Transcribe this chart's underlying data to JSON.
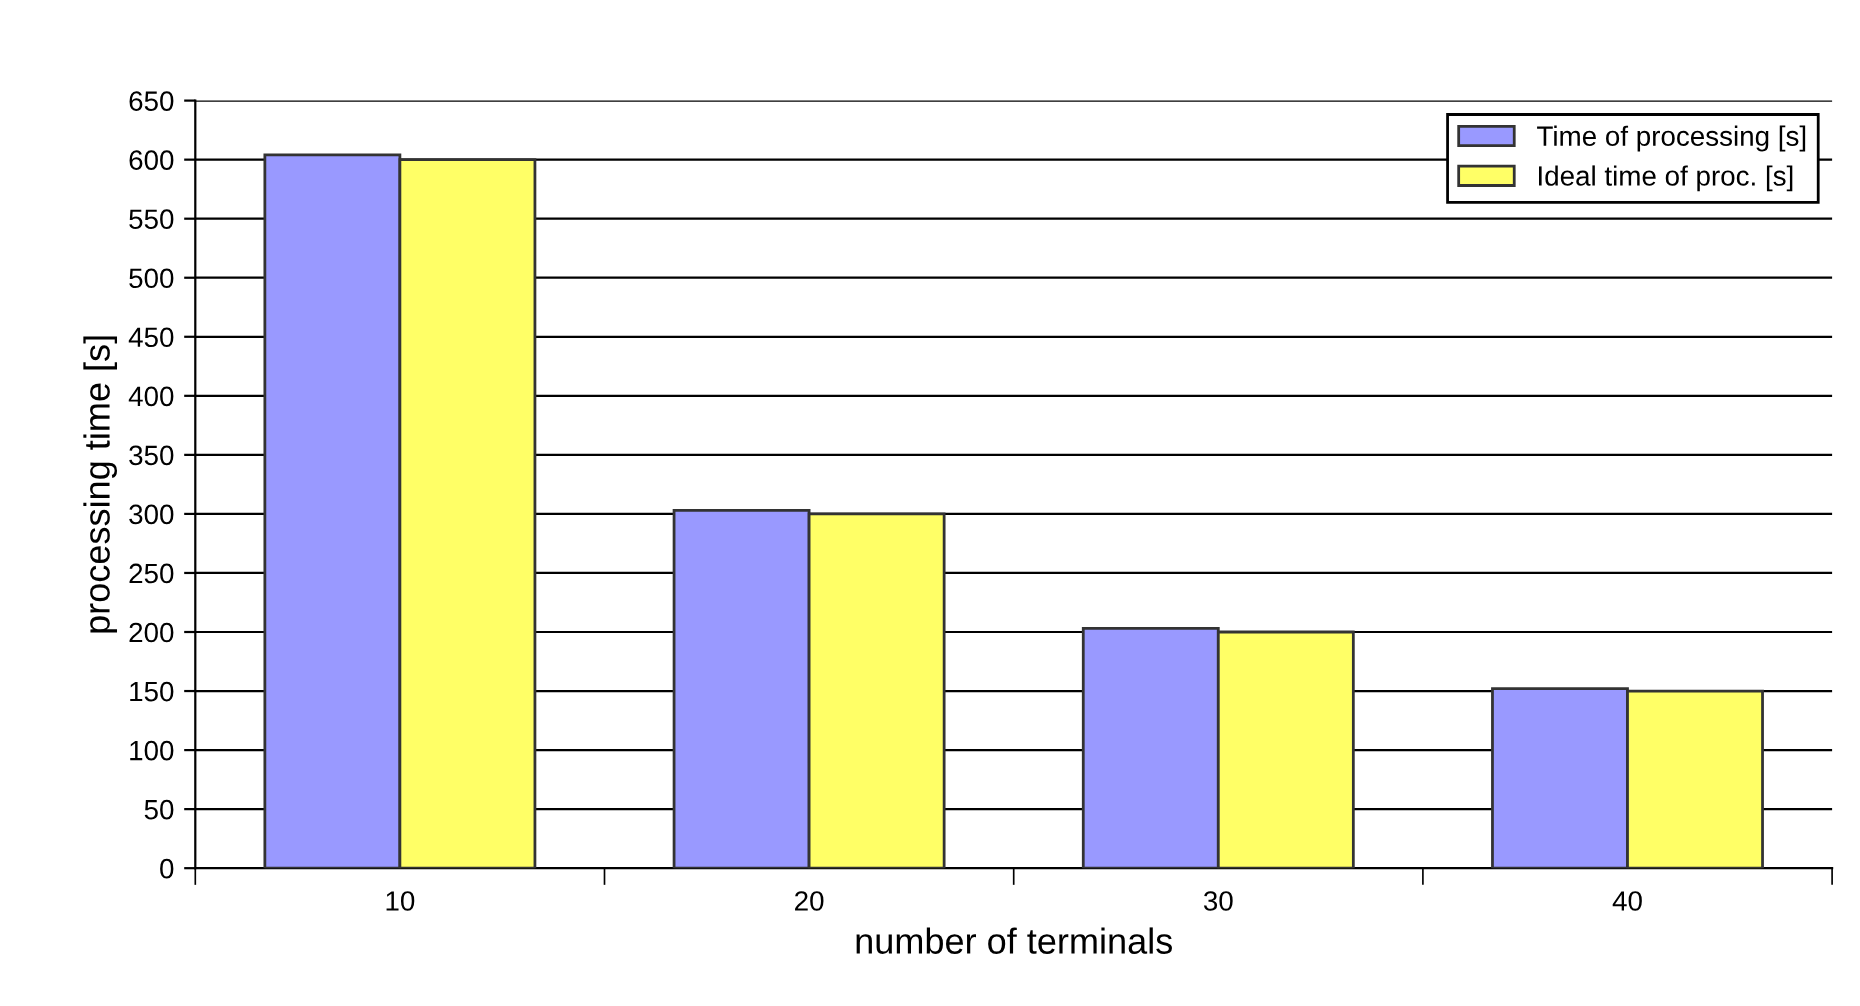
{
  "chart_data": {
    "type": "bar",
    "xlabel": "number of terminals",
    "ylabel": "processing time [s]",
    "categories": [
      "10",
      "20",
      "30",
      "40"
    ],
    "series": [
      {
        "name": "Time of processing [s]",
        "color": "#9999ff",
        "values": [
          604,
          303,
          203,
          152
        ]
      },
      {
        "name": "Ideal time of proc. [s]",
        "color": "#ffff66",
        "values": [
          600,
          300,
          200,
          150
        ]
      }
    ],
    "ylim": [
      0,
      650
    ],
    "yticks": [
      0,
      50,
      100,
      150,
      200,
      250,
      300,
      350,
      400,
      450,
      500,
      550,
      600,
      650
    ],
    "grid": "y",
    "legend": "top right"
  }
}
